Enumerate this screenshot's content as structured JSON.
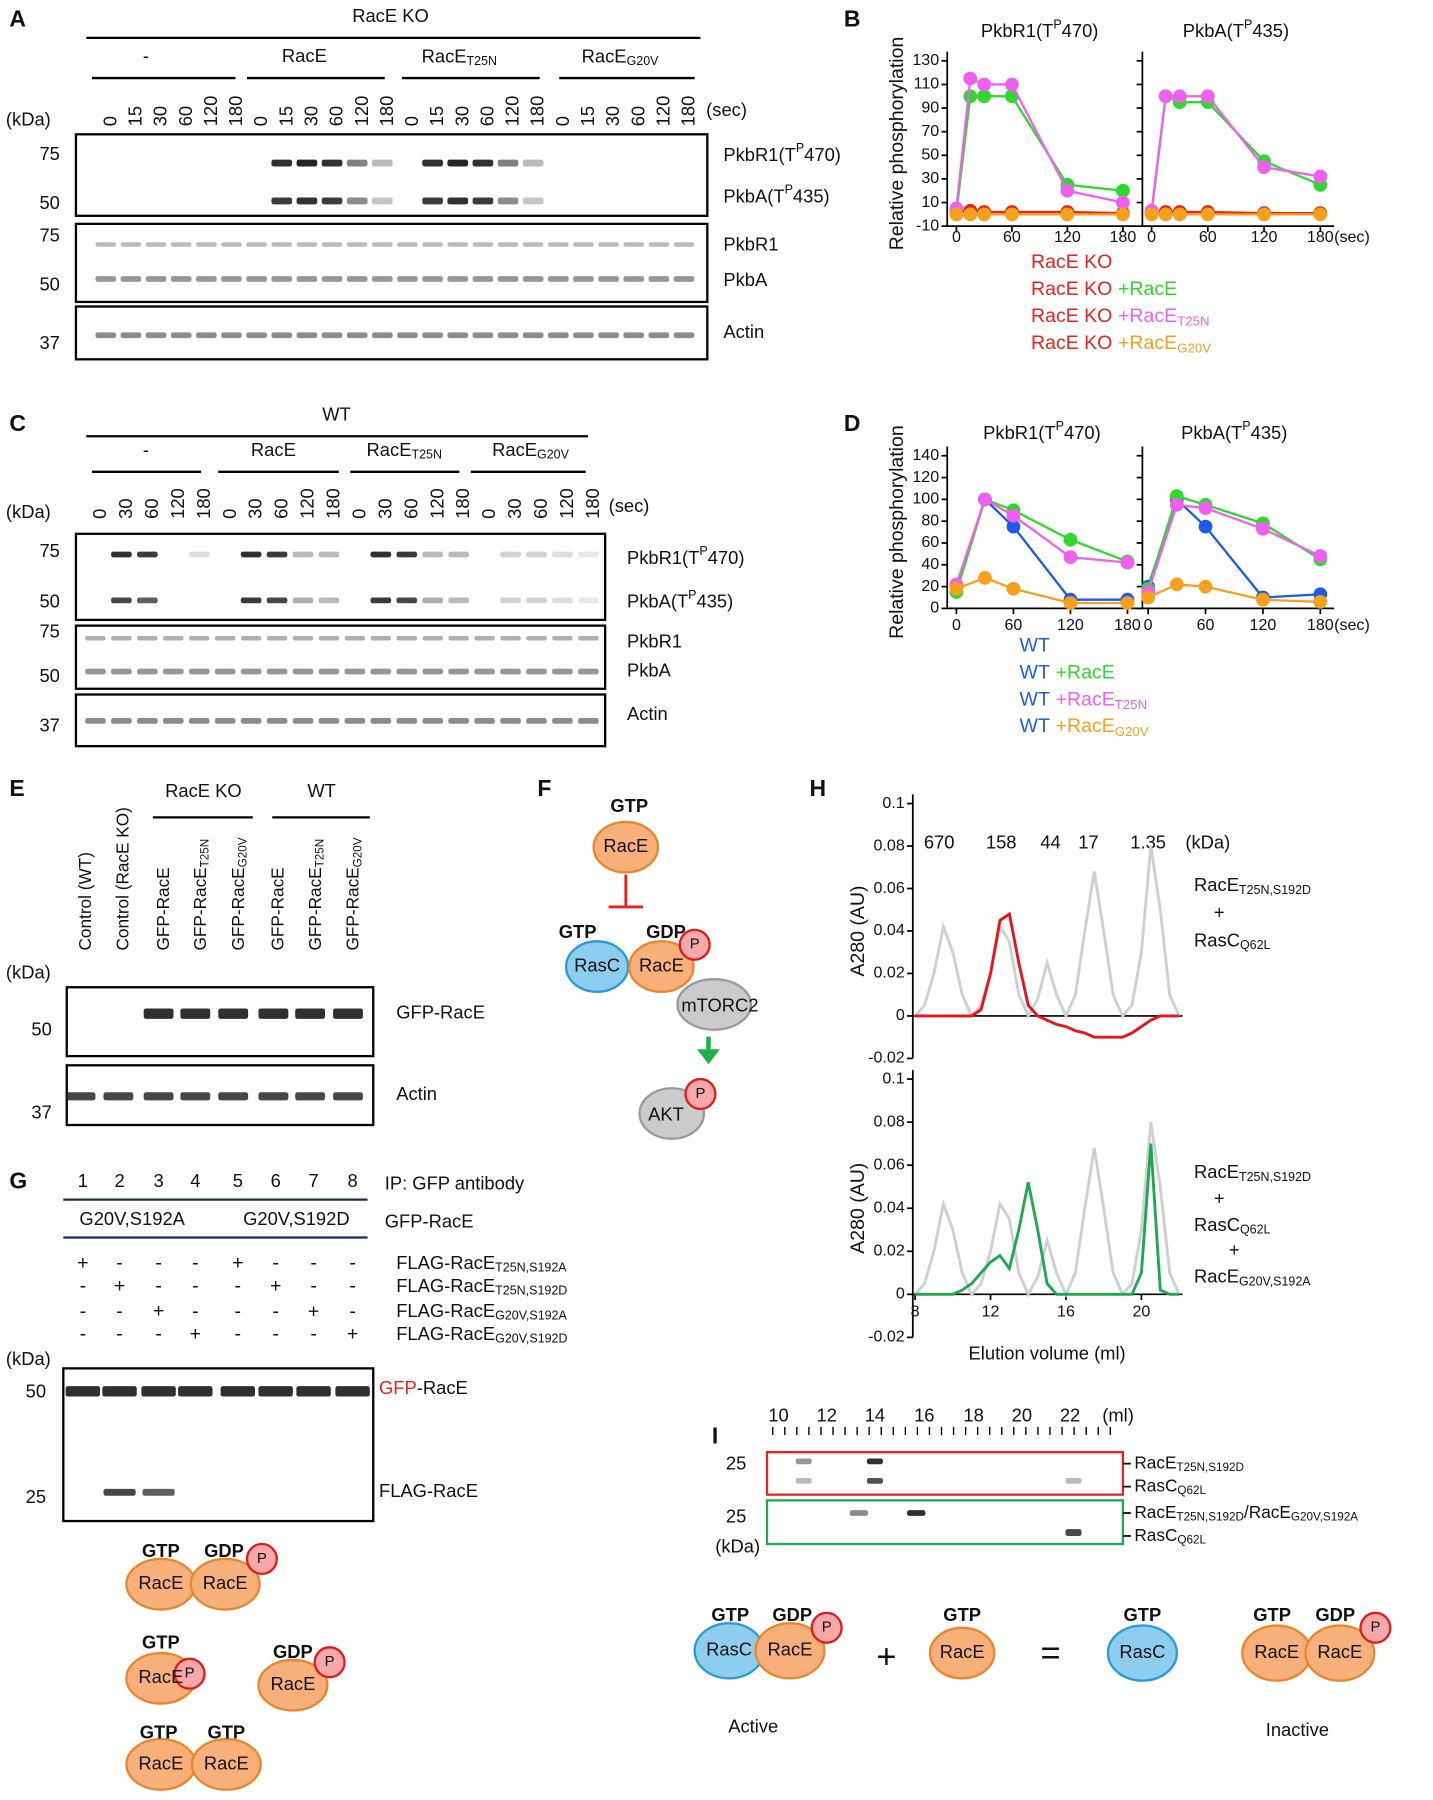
{
  "figure": {
    "a": {
      "label": "A",
      "title": "RacE KO",
      "groups": [
        "-",
        "RacE",
        {
          "text": "RacE",
          "sub": "T25N"
        },
        {
          "text": "RacE",
          "sub": "G20V"
        }
      ],
      "times": [
        "0",
        "15",
        "30",
        "60",
        "120",
        "180"
      ],
      "time_unit": "(sec)",
      "kda": "(kDa)",
      "markers": [
        "75",
        "50",
        "75",
        "50",
        "37"
      ],
      "blot_labels": [
        {
          "text": "PkbR1(T",
          "sup": "P",
          "post": "470)"
        },
        {
          "text": "PkbA(T",
          "sup": "P",
          "post": "435)"
        },
        "PkbR1",
        "PkbA",
        "Actin"
      ]
    },
    "c": {
      "label": "C",
      "title": "WT",
      "groups": [
        "-",
        "RacE",
        {
          "text": "RacE",
          "sub": "T25N"
        },
        {
          "text": "RacE",
          "sub": "G20V"
        }
      ],
      "times": [
        "0",
        "30",
        "60",
        "120",
        "180"
      ],
      "time_unit": "(sec)",
      "kda": "(kDa)",
      "markers": [
        "75",
        "50",
        "75",
        "50",
        "37"
      ],
      "blot_labels": [
        {
          "text": "PkbR1(T",
          "sup": "P",
          "post": "470)"
        },
        {
          "text": "PkbA(T",
          "sup": "P",
          "post": "435)"
        },
        "PkbR1",
        "PkbA",
        "Actin"
      ]
    },
    "b": {
      "label": "B"
    },
    "d": {
      "label": "D"
    },
    "e": {
      "label": "E",
      "lanes": [
        "Control (WT)",
        "Control (RacE KO)",
        "GFP-RacE",
        {
          "text": "GFP-RacE",
          "sub": "T25N"
        },
        {
          "text": "GFP-RacE",
          "sub": "G20V"
        },
        "GFP-RacE",
        {
          "text": "GFP-RacE",
          "sub": "T25N"
        },
        {
          "text": "GFP-RacE",
          "sub": "G20V"
        }
      ],
      "groups": [
        "RacE KO",
        "WT"
      ],
      "kda": "(kDa)",
      "markers": [
        "50",
        "37"
      ],
      "blot_labels": [
        "GFP-RacE",
        "Actin"
      ]
    },
    "f": {
      "label": "F",
      "texts": [
        "GTP",
        "RacE",
        "GTP",
        "GDP",
        "RasC",
        "RacE",
        "P",
        "mTORC2",
        "AKT",
        "P"
      ]
    },
    "g": {
      "label": "G",
      "lanes": [
        "1",
        "2",
        "3",
        "4",
        "5",
        "6",
        "7",
        "8"
      ],
      "ip": "IP: GFP antibody",
      "groups": [
        "G20V,S192A",
        "G20V,S192D"
      ],
      "group_label": "GFP-RacE",
      "rows": [
        {
          "label": {
            "text": "FLAG-RacE",
            "sub": "T25N,S192A"
          },
          "signs": [
            "+",
            "-",
            "-",
            "-",
            "+",
            "-",
            "-",
            "-"
          ]
        },
        {
          "label": {
            "text": "FLAG-RacE",
            "sub": "T25N,S192D"
          },
          "signs": [
            "-",
            {
              "text": "+",
              "color": "#e8231b"
            },
            "-",
            "-",
            "-",
            "+",
            "-",
            "-"
          ]
        },
        {
          "label": {
            "text": "FLAG-RacE",
            "sub": "G20V,S192A"
          },
          "signs": [
            "-",
            "-",
            {
              "text": "+",
              "color": "#e8231b"
            },
            "-",
            "-",
            "-",
            "+",
            "-"
          ]
        },
        {
          "label": {
            "text": "FLAG-RacE",
            "sub": "G20V,S192D"
          },
          "signs": [
            "-",
            "-",
            "-",
            "+",
            "-",
            "-",
            "-",
            "+"
          ]
        }
      ],
      "kda": "(kDa)",
      "markers": [
        "50",
        "25"
      ],
      "blot_labels": [
        {
          "text": "GFP",
          "post": "-RacE"
        },
        "FLAG-RacE"
      ],
      "diagram": [
        "GTP",
        "GDP",
        "RacE",
        "RacE",
        "P",
        "GTP",
        "RacE",
        "P",
        "GDP",
        "RacE",
        "P",
        "GTP",
        "GTP",
        "RacE",
        "RacE"
      ]
    },
    "h": {
      "label": "H",
      "markers": [
        "670",
        "158",
        "44",
        "17",
        "1.35",
        "(kDa)"
      ],
      "right_top": [
        {
          "text": "RacE",
          "sub": "T25N,S192D"
        },
        "+",
        {
          "text": "RasC",
          "sub": "Q62L"
        }
      ],
      "right_bottom": [
        {
          "text": "RacE",
          "sub": "T25N,S192D"
        },
        "+",
        {
          "text": "RasC",
          "sub": "Q62L"
        },
        "+",
        {
          "text": "RacE",
          "sub": "G20V,S192A"
        }
      ]
    },
    "i": {
      "label": "I",
      "scale": [
        "10",
        "12",
        "14",
        "16",
        "18",
        "20",
        "22",
        "(ml)"
      ],
      "markers": [
        "25",
        "25"
      ],
      "kda": "(kDa)",
      "labels": [
        {
          "text": "RacE",
          "sub": "T25N,S192D"
        },
        {
          "text": "RasC",
          "sub": "Q62L"
        },
        {
          "text": "RacE",
          "sub": "T25N,S192D",
          "post": "/RacE",
          "sub2": "G20V,S192A"
        },
        {
          "text": "RasC",
          "sub": "Q62L"
        }
      ],
      "diagram": [
        "GTP",
        "GDP",
        "RasC",
        "RacE",
        "P",
        "+",
        "GTP",
        "RacE",
        "=",
        "GTP",
        "RasC",
        "GTP",
        "GDP",
        "RacE",
        "RacE",
        "P",
        "Active",
        "Inactive"
      ]
    }
  },
  "chart_data": [
    {
      "type": "line",
      "ylabel": "Relative phosphorylation",
      "x": [
        0,
        15,
        30,
        60,
        120,
        180
      ],
      "xlim": [
        0,
        180
      ],
      "xticks": [
        0,
        60,
        120,
        180
      ],
      "x_unit": "(sec)",
      "ylim": [
        -10,
        130
      ],
      "yticks": [
        -10,
        10,
        30,
        50,
        70,
        90,
        110,
        130
      ],
      "markers": true,
      "legend_prefix": "RacE KO",
      "series": [
        {
          "name": "RacE KO",
          "color": "#e8231b"
        },
        {
          "name": "+RacE",
          "color": "#2ed82e"
        },
        {
          "name": {
            "text": "+RacE",
            "sub": "T25N"
          },
          "color": "#f060f0"
        },
        {
          "name": {
            "text": "+RacE",
            "sub": "G20V"
          },
          "color": "#f5a11c"
        }
      ],
      "subplots": [
        {
          "title": {
            "text": "PkbR1(T",
            "sup": "P",
            "post": "470)"
          },
          "values": [
            [
              2,
              3,
              2,
              2,
              2,
              1
            ],
            [
              2,
              100,
              100,
              100,
              25,
              20
            ],
            [
              5,
              115,
              110,
              110,
              20,
              10
            ],
            [
              0,
              0,
              0,
              0,
              0,
              0
            ]
          ]
        },
        {
          "title": {
            "text": "PkbA(T",
            "sup": "P",
            "post": "435)"
          },
          "values": [
            [
              1,
              2,
              2,
              2,
              1,
              1
            ],
            [
              1,
              100,
              95,
              95,
              45,
              25
            ],
            [
              3,
              100,
              100,
              100,
              40,
              32
            ],
            [
              0,
              0,
              0,
              0,
              0,
              0
            ]
          ]
        }
      ]
    },
    {
      "type": "line",
      "ylabel": "Relative phosphorylation",
      "x": [
        0,
        30,
        60,
        120,
        180
      ],
      "xlim": [
        0,
        180
      ],
      "xticks": [
        0,
        60,
        120,
        180
      ],
      "x_unit": "(sec)",
      "ylim": [
        0,
        140
      ],
      "yticks": [
        0,
        20,
        40,
        60,
        80,
        100,
        120,
        140
      ],
      "markers": true,
      "legend_prefix": "WT",
      "series": [
        {
          "name": "WT",
          "color": "#1e5be6"
        },
        {
          "name": "+RacE",
          "color": "#2ed82e"
        },
        {
          "name": {
            "text": "+RacE",
            "sub": "T25N"
          },
          "color": "#f060f0"
        },
        {
          "name": {
            "text": "+RacE",
            "sub": "G20V"
          },
          "color": "#f5a11c"
        }
      ],
      "subplots": [
        {
          "title": {
            "text": "PkbR1(T",
            "sup": "P",
            "post": "470)"
          },
          "values": [
            [
              20,
              100,
              75,
              8,
              8
            ],
            [
              15,
              100,
              90,
              63,
              43
            ],
            [
              22,
              100,
              85,
              47,
              42
            ],
            [
              18,
              28,
              18,
              5,
              5
            ]
          ]
        },
        {
          "title": {
            "text": "PkbA(T",
            "sup": "P",
            "post": "435)"
          },
          "values": [
            [
              20,
              100,
              75,
              10,
              13
            ],
            [
              18,
              103,
              95,
              78,
              45
            ],
            [
              15,
              95,
              92,
              73,
              48
            ],
            [
              10,
              22,
              20,
              8,
              6
            ]
          ]
        }
      ]
    },
    {
      "type": "line",
      "ylabel": "A280 (AU)",
      "x": [
        8,
        8.5,
        9,
        9.5,
        10,
        10.5,
        11,
        11.5,
        12,
        12.5,
        13,
        13.5,
        14,
        14.5,
        15,
        15.5,
        16,
        16.5,
        17,
        17.5,
        18,
        18.5,
        19,
        19.5,
        20,
        20.5,
        21,
        21.5,
        22
      ],
      "xlim": [
        8,
        22
      ],
      "ylim": [
        -0.02,
        0.1
      ],
      "yticks": [
        -0.02,
        0,
        0.02,
        0.04,
        0.06,
        0.08,
        0.1
      ],
      "zero_line": true,
      "series": [
        {
          "color": "#cfcfcf"
        },
        {
          "color": "#e8141b"
        }
      ],
      "subplots": [
        {
          "values": [
            [
              0,
              0.005,
              0.02,
              0.042,
              0.03,
              0.01,
              0,
              0.005,
              0.02,
              0.042,
              0.035,
              0.01,
              0,
              0.008,
              0.025,
              0.01,
              0,
              0.01,
              0.04,
              0.068,
              0.04,
              0.01,
              0,
              0.005,
              0.03,
              0.08,
              0.05,
              0.01,
              0
            ],
            [
              0,
              0,
              0,
              0,
              0,
              0,
              0,
              0.003,
              0.02,
              0.045,
              0.048,
              0.025,
              0.005,
              0,
              -0.002,
              -0.004,
              -0.005,
              -0.007,
              -0.008,
              -0.01,
              -0.01,
              -0.01,
              -0.01,
              -0.008,
              -0.005,
              -0.002,
              0,
              0,
              0
            ]
          ]
        }
      ]
    },
    {
      "type": "line",
      "ylabel": "A280 (AU)",
      "xlabel": "Elution volume (ml)",
      "x": [
        8,
        8.5,
        9,
        9.5,
        10,
        10.5,
        11,
        11.5,
        12,
        12.5,
        13,
        13.5,
        14,
        14.5,
        15,
        15.5,
        16,
        16.5,
        17,
        17.5,
        18,
        18.5,
        19,
        19.5,
        20,
        20.5,
        21,
        21.5,
        22
      ],
      "xlim": [
        8,
        22
      ],
      "xticks": [
        8,
        12,
        16,
        20
      ],
      "ylim": [
        -0.02,
        0.1
      ],
      "yticks": [
        -0.02,
        0,
        0.02,
        0.04,
        0.06,
        0.08,
        0.1
      ],
      "zero_line": true,
      "series": [
        {
          "color": "#cfcfcf"
        },
        {
          "color": "#1fa84f"
        }
      ],
      "subplots": [
        {
          "values": [
            [
              0,
              0.005,
              0.02,
              0.042,
              0.03,
              0.01,
              0,
              0.005,
              0.02,
              0.042,
              0.035,
              0.01,
              0,
              0.008,
              0.025,
              0.01,
              0,
              0.01,
              0.04,
              0.068,
              0.04,
              0.01,
              0,
              0.005,
              0.03,
              0.08,
              0.05,
              0.01,
              0
            ],
            [
              0,
              0,
              0,
              0,
              0,
              0.002,
              0.005,
              0.01,
              0.015,
              0.018,
              0.012,
              0.03,
              0.052,
              0.03,
              0.005,
              0,
              0,
              0,
              0,
              0,
              0,
              0,
              0,
              0,
              0.01,
              0.07,
              0.002,
              0,
              0
            ]
          ]
        }
      ]
    }
  ]
}
